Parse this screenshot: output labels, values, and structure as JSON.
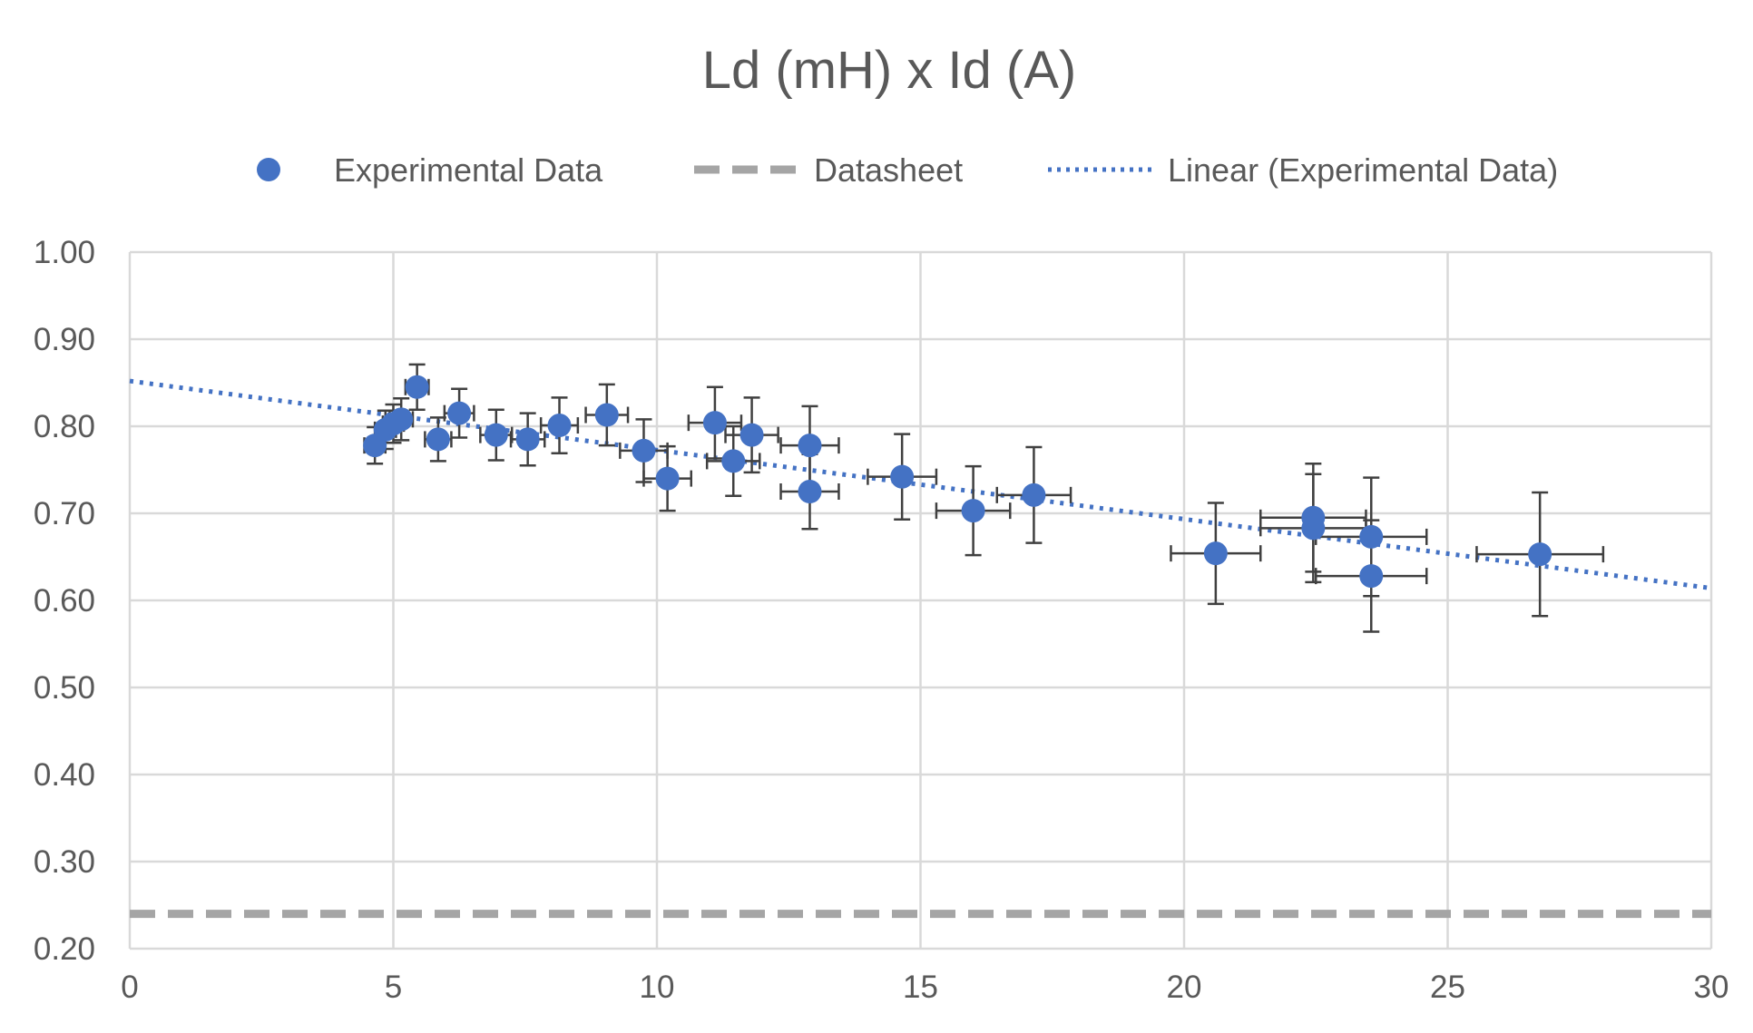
{
  "chart_data": {
    "type": "scatter",
    "title": "Ld (mH) x Id (A)",
    "xlabel": "",
    "ylabel": "",
    "xlim": [
      0,
      30
    ],
    "ylim": [
      0.2,
      1.0
    ],
    "xticks": [
      "0",
      "5",
      "10",
      "15",
      "20",
      "25",
      "30"
    ],
    "yticks": [
      "0.20",
      "0.30",
      "0.40",
      "0.50",
      "0.60",
      "0.70",
      "0.80",
      "0.90",
      "1.00"
    ],
    "grid": true,
    "legend_position": "top",
    "legend": [
      "Experimental Data",
      "Datasheet",
      "Linear (Experimental Data)"
    ],
    "colors": {
      "experimental": "#4472c4",
      "datasheet": "#a5a5a5",
      "trendline": "#4472c4",
      "error_bars": "#404040",
      "grid": "#d9d9d9",
      "text": "#595959"
    },
    "series": [
      {
        "name": "Experimental Data",
        "type": "scatter",
        "points": [
          {
            "x": 4.65,
            "y": 0.778,
            "xerr": 0.2,
            "yerr": 0.021
          },
          {
            "x": 4.85,
            "y": 0.796,
            "xerr": 0.2,
            "yerr": 0.022
          },
          {
            "x": 5.0,
            "y": 0.803,
            "xerr": 0.2,
            "yerr": 0.022
          },
          {
            "x": 5.15,
            "y": 0.808,
            "xerr": 0.22,
            "yerr": 0.024
          },
          {
            "x": 5.45,
            "y": 0.845,
            "xerr": 0.22,
            "yerr": 0.026
          },
          {
            "x": 5.85,
            "y": 0.785,
            "xerr": 0.25,
            "yerr": 0.025
          },
          {
            "x": 6.25,
            "y": 0.815,
            "xerr": 0.28,
            "yerr": 0.028
          },
          {
            "x": 6.95,
            "y": 0.79,
            "xerr": 0.3,
            "yerr": 0.029
          },
          {
            "x": 7.55,
            "y": 0.785,
            "xerr": 0.32,
            "yerr": 0.03
          },
          {
            "x": 8.15,
            "y": 0.801,
            "xerr": 0.35,
            "yerr": 0.032
          },
          {
            "x": 9.05,
            "y": 0.813,
            "xerr": 0.4,
            "yerr": 0.035
          },
          {
            "x": 9.75,
            "y": 0.772,
            "xerr": 0.45,
            "yerr": 0.036
          },
          {
            "x": 10.2,
            "y": 0.74,
            "xerr": 0.45,
            "yerr": 0.037
          },
          {
            "x": 11.1,
            "y": 0.804,
            "xerr": 0.5,
            "yerr": 0.041
          },
          {
            "x": 11.45,
            "y": 0.76,
            "xerr": 0.5,
            "yerr": 0.04
          },
          {
            "x": 11.8,
            "y": 0.79,
            "xerr": 0.5,
            "yerr": 0.043
          },
          {
            "x": 12.9,
            "y": 0.778,
            "xerr": 0.55,
            "yerr": 0.045
          },
          {
            "x": 12.9,
            "y": 0.725,
            "xerr": 0.55,
            "yerr": 0.043
          },
          {
            "x": 14.65,
            "y": 0.742,
            "xerr": 0.65,
            "yerr": 0.049
          },
          {
            "x": 16.0,
            "y": 0.703,
            "xerr": 0.7,
            "yerr": 0.051
          },
          {
            "x": 17.15,
            "y": 0.721,
            "xerr": 0.7,
            "yerr": 0.055
          },
          {
            "x": 20.6,
            "y": 0.654,
            "xerr": 0.85,
            "yerr": 0.058
          },
          {
            "x": 22.45,
            "y": 0.695,
            "xerr": 1.0,
            "yerr": 0.062
          },
          {
            "x": 22.45,
            "y": 0.683,
            "xerr": 1.0,
            "yerr": 0.062
          },
          {
            "x": 23.55,
            "y": 0.673,
            "xerr": 1.05,
            "yerr": 0.068
          },
          {
            "x": 23.55,
            "y": 0.628,
            "xerr": 1.05,
            "yerr": 0.064
          },
          {
            "x": 26.75,
            "y": 0.653,
            "xerr": 1.2,
            "yerr": 0.071
          }
        ]
      },
      {
        "name": "Datasheet",
        "type": "line",
        "x": [
          0,
          30
        ],
        "y": [
          0.24,
          0.24
        ]
      },
      {
        "name": "Linear (Experimental Data)",
        "type": "trendline",
        "x": [
          0,
          30
        ],
        "y": [
          0.852,
          0.614
        ]
      }
    ]
  }
}
